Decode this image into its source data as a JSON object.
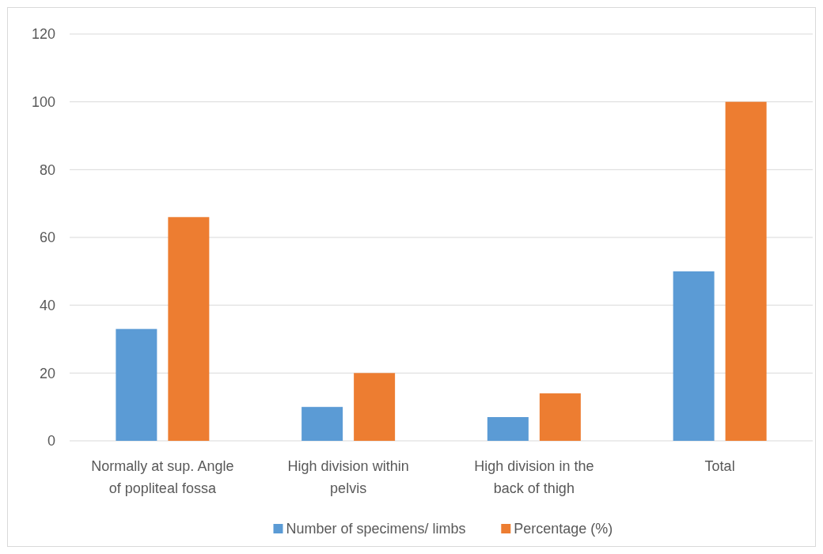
{
  "chart_data": {
    "type": "bar",
    "categories": [
      "Normally at sup. Angle of popliteal fossa",
      "High division within pelvis",
      "High division in the back of thigh",
      "Total"
    ],
    "series": [
      {
        "name": "Number of specimens/ limbs",
        "color": "#5b9bd5",
        "values": [
          33,
          10,
          7,
          50
        ]
      },
      {
        "name": "Percentage (%)",
        "color": "#ed7d31",
        "values": [
          66,
          20,
          14,
          100
        ]
      }
    ],
    "ylim": [
      0,
      120
    ],
    "yticks": [
      0,
      20,
      40,
      60,
      80,
      100,
      120
    ],
    "grid": "y",
    "legend": "bottom"
  }
}
